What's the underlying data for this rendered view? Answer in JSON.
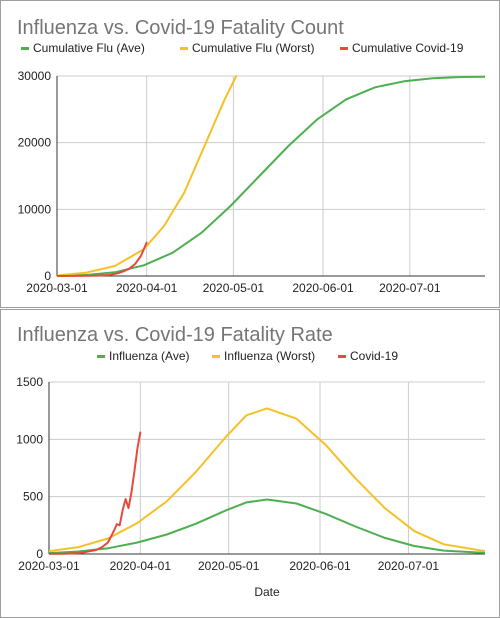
{
  "colors": {
    "ave": "#4caf50",
    "worst": "#f6c026",
    "covid": "#e64a3c",
    "grid": "#cccccc",
    "axis": "#333333"
  },
  "chart_data": [
    {
      "type": "line",
      "title": "Influenza vs. Covid-19 Fatality Count",
      "xlabel": "",
      "ylabel": "",
      "ylim": [
        0,
        30000
      ],
      "xlim": [
        "2020-03-01",
        "2020-07-27"
      ],
      "yticks": [
        "0",
        "10000",
        "20000",
        "30000"
      ],
      "xticks": [
        "2020-03-01",
        "2020-04-01",
        "2020-05-01",
        "2020-06-01",
        "2020-07-01"
      ],
      "grid": true,
      "legend_position": "top",
      "series": [
        {
          "name": "Cumulative Flu (Ave)",
          "color": "#4caf50",
          "x": [
            "2020-03-01",
            "2020-03-11",
            "2020-03-21",
            "2020-03-31",
            "2020-04-10",
            "2020-04-20",
            "2020-04-30",
            "2020-05-10",
            "2020-05-20",
            "2020-05-30",
            "2020-06-09",
            "2020-06-19",
            "2020-06-29",
            "2020-07-09",
            "2020-07-19",
            "2020-07-27"
          ],
          "values": [
            30,
            150,
            550,
            1600,
            3500,
            6500,
            10500,
            15000,
            19500,
            23500,
            26500,
            28300,
            29200,
            29650,
            29850,
            29900
          ]
        },
        {
          "name": "Cumulative Flu (Worst)",
          "color": "#f6c026",
          "x": [
            "2020-03-01",
            "2020-03-11",
            "2020-03-21",
            "2020-03-31",
            "2020-04-07",
            "2020-04-14",
            "2020-04-21",
            "2020-04-28",
            "2020-05-02"
          ],
          "values": [
            80,
            500,
            1500,
            4000,
            7500,
            12500,
            19500,
            26500,
            30000
          ]
        },
        {
          "name": "Cumulative Covid-19",
          "color": "#e64a3c",
          "x": [
            "2020-03-01",
            "2020-03-08",
            "2020-03-15",
            "2020-03-19",
            "2020-03-22",
            "2020-03-24",
            "2020-03-26",
            "2020-03-28",
            "2020-03-30",
            "2020-04-01"
          ],
          "values": [
            1,
            20,
            60,
            150,
            400,
            700,
            1100,
            1800,
            3000,
            5000
          ]
        }
      ]
    },
    {
      "type": "line",
      "title": "Influenza vs. Covid-19 Fatality Rate",
      "xlabel": "Date",
      "ylabel": "",
      "ylim": [
        0,
        1500
      ],
      "xlim": [
        "2020-03-01",
        "2020-07-27"
      ],
      "yticks": [
        "0",
        "500",
        "1000",
        "1500"
      ],
      "xticks": [
        "2020-03-01",
        "2020-04-01",
        "2020-05-01",
        "2020-06-01",
        "2020-07-01"
      ],
      "grid": true,
      "legend_position": "top",
      "series": [
        {
          "name": "Influenza (Ave)",
          "color": "#4caf50",
          "x": [
            "2020-03-01",
            "2020-03-11",
            "2020-03-21",
            "2020-03-31",
            "2020-04-10",
            "2020-04-20",
            "2020-04-30",
            "2020-05-07",
            "2020-05-14",
            "2020-05-24",
            "2020-06-03",
            "2020-06-13",
            "2020-06-23",
            "2020-07-03",
            "2020-07-13",
            "2020-07-27"
          ],
          "values": [
            8,
            22,
            50,
            100,
            170,
            265,
            380,
            450,
            475,
            440,
            350,
            240,
            140,
            70,
            30,
            10
          ]
        },
        {
          "name": "Influenza (Worst)",
          "color": "#f6c026",
          "x": [
            "2020-03-01",
            "2020-03-11",
            "2020-03-21",
            "2020-03-31",
            "2020-04-10",
            "2020-04-20",
            "2020-04-30",
            "2020-05-07",
            "2020-05-14",
            "2020-05-24",
            "2020-06-03",
            "2020-06-13",
            "2020-06-23",
            "2020-07-03",
            "2020-07-13",
            "2020-07-27"
          ],
          "values": [
            25,
            60,
            135,
            270,
            460,
            720,
            1020,
            1210,
            1270,
            1180,
            950,
            660,
            400,
            200,
            85,
            25
          ]
        },
        {
          "name": "Covid-19",
          "color": "#e64a3c",
          "x": [
            "2020-03-01",
            "2020-03-06",
            "2020-03-11",
            "2020-03-14",
            "2020-03-17",
            "2020-03-19",
            "2020-03-21",
            "2020-03-22",
            "2020-03-23",
            "2020-03-24",
            "2020-03-25",
            "2020-03-26",
            "2020-03-27",
            "2020-03-28",
            "2020-03-29",
            "2020-03-30",
            "2020-03-31",
            "2020-04-01"
          ],
          "values": [
            1,
            3,
            8,
            20,
            35,
            60,
            100,
            150,
            200,
            260,
            250,
            380,
            480,
            400,
            540,
            720,
            920,
            1060
          ]
        }
      ]
    }
  ]
}
